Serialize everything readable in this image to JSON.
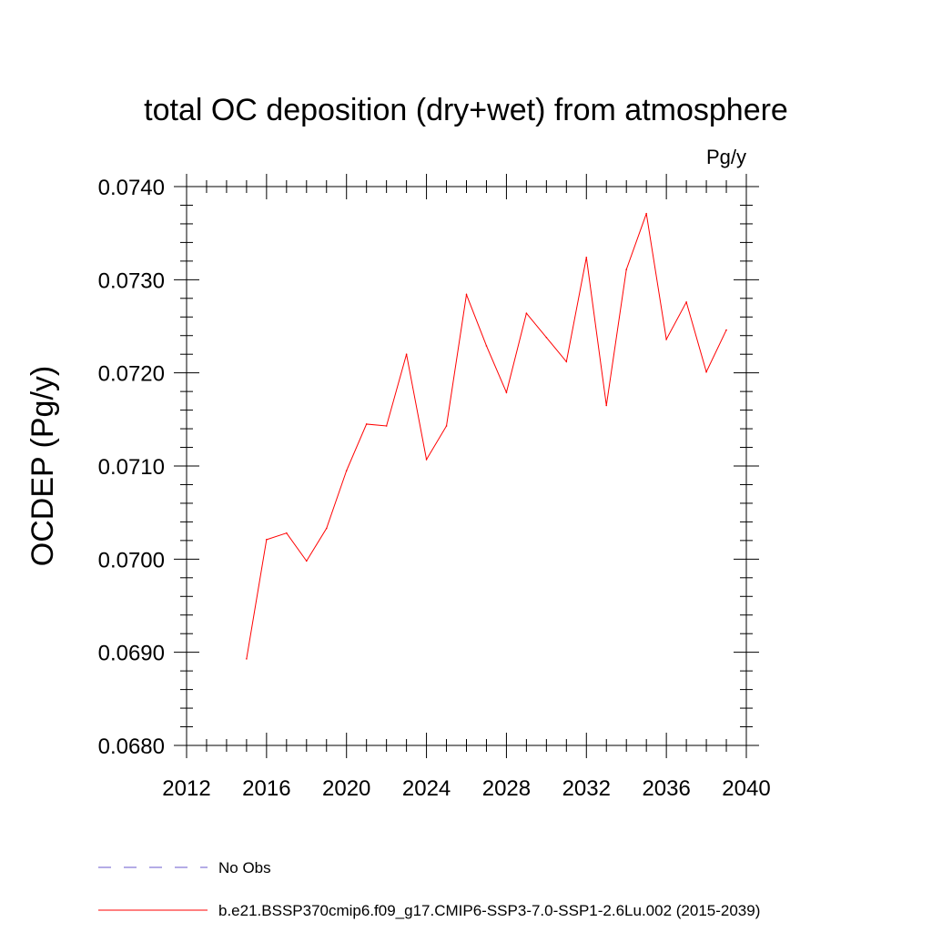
{
  "chart_data": {
    "type": "line",
    "title": "total OC deposition (dry+wet) from atmosphere",
    "units": "Pg/y",
    "xlabel": "",
    "ylabel": "OCDEP  (Pg/y)",
    "xlim": [
      2012,
      2040
    ],
    "ylim": [
      0.068,
      0.074
    ],
    "x_ticks": [
      2012,
      2016,
      2020,
      2024,
      2028,
      2032,
      2036,
      2040
    ],
    "x_tick_labels": [
      "2012",
      "2016",
      "2020",
      "2024",
      "2028",
      "2032",
      "2036",
      "2040"
    ],
    "y_ticks": [
      0.068,
      0.069,
      0.07,
      0.071,
      0.072,
      0.073,
      0.074
    ],
    "y_tick_labels": [
      "0.0680",
      "0.0690",
      "0.0700",
      "0.0710",
      "0.0720",
      "0.0730",
      "0.0740"
    ],
    "grid": false,
    "legend_position": "bottom",
    "series": [
      {
        "name": "No Obs",
        "color": "#6a5acd",
        "dash": "dashed",
        "x": [],
        "y": []
      },
      {
        "name": "b.e21.BSSP370cmip6.f09_g17.CMIP6-SSP3-7.0-SSP1-2.6Lu.002 (2015-2039)",
        "color": "#ff0000",
        "dash": "solid",
        "x": [
          2015,
          2016,
          2017,
          2018,
          2019,
          2020,
          2021,
          2022,
          2023,
          2024,
          2025,
          2026,
          2027,
          2028,
          2029,
          2030,
          2031,
          2032,
          2033,
          2034,
          2035,
          2036,
          2037,
          2038,
          2039
        ],
        "y": [
          0.06893,
          0.07021,
          0.07028,
          0.06998,
          0.07033,
          0.07095,
          0.07145,
          0.07143,
          0.0722,
          0.07107,
          0.07143,
          0.07284,
          0.07229,
          0.07179,
          0.07264,
          0.07238,
          0.07212,
          0.07324,
          0.07165,
          0.07311,
          0.07371,
          0.07236,
          0.07276,
          0.07201,
          0.07246
        ]
      }
    ]
  }
}
